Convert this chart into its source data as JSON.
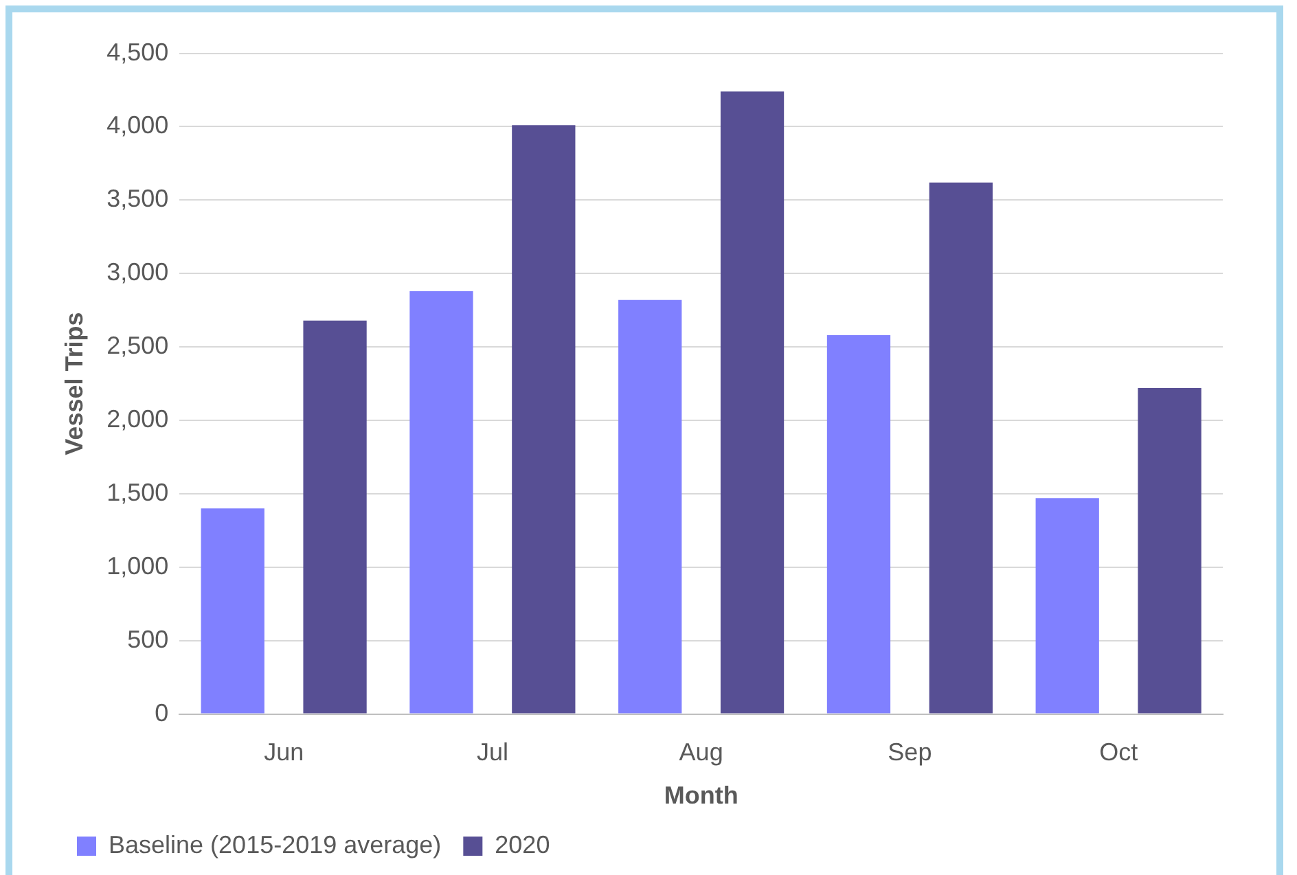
{
  "chart_data": {
    "type": "bar",
    "xlabel": "Month",
    "ylabel": "Vessel Trips",
    "categories": [
      "Jun",
      "Jul",
      "Aug",
      "Sep",
      "Oct"
    ],
    "series": [
      {
        "name": "Baseline (2015-2019 average)",
        "color": "#8080ff",
        "values": [
          1400,
          2880,
          2820,
          2580,
          1470
        ]
      },
      {
        "name": "2020",
        "color": "#574f94",
        "values": [
          2680,
          4010,
          4240,
          3620,
          2220
        ]
      }
    ],
    "ylim": [
      0,
      4500
    ],
    "yticks": [
      0,
      500,
      {
        "value": 1000,
        "label": "1,000"
      },
      {
        "value": 1500,
        "label": "1,500"
      },
      {
        "value": 2000,
        "label": "2,000"
      },
      {
        "value": 2500,
        "label": "2,500"
      },
      {
        "value": 3000,
        "label": "3,000"
      },
      {
        "value": 3500,
        "label": "3,500"
      },
      {
        "value": 4000,
        "label": "4,000"
      },
      {
        "value": 4500,
        "label": "4,500"
      }
    ],
    "grid": "y",
    "legend": "bottom left"
  }
}
